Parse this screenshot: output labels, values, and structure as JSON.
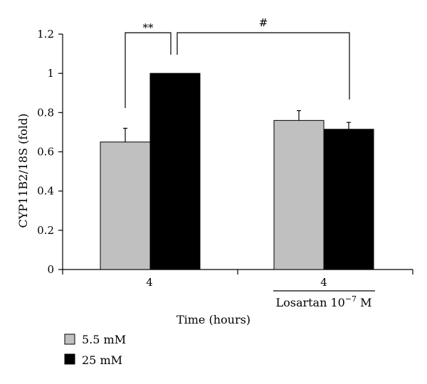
{
  "chart_data": {
    "type": "bar",
    "ylabel": "CYP11B2/18S (fold)",
    "xlabel": "Time (hours)",
    "ylim": [
      0,
      1.2
    ],
    "yticks": [
      "0",
      "0.2",
      "0.4",
      "0.6",
      "0.8",
      "1",
      "1.2"
    ],
    "groups": [
      {
        "label": "4",
        "sublabel": ""
      },
      {
        "label": "4",
        "sublabel": "Losartan 10",
        "sublabel_sup": "−7",
        "sublabel_unit": " M"
      }
    ],
    "series": [
      {
        "name": "5.5 mM",
        "color": "#c0c0c0",
        "values": [
          0.65,
          0.76
        ],
        "errors": [
          0.07,
          0.05
        ]
      },
      {
        "name": "25 mM",
        "color": "#000000",
        "values": [
          1.0,
          0.715
        ],
        "errors": [
          0.0,
          0.035
        ]
      }
    ],
    "annotations": [
      {
        "text": "**",
        "between": "group1-5.5mM vs group1-25mM"
      },
      {
        "text": "#",
        "between": "group1-25mM vs group2-25mM"
      }
    ],
    "grid": false,
    "legend": "bottom-left"
  }
}
